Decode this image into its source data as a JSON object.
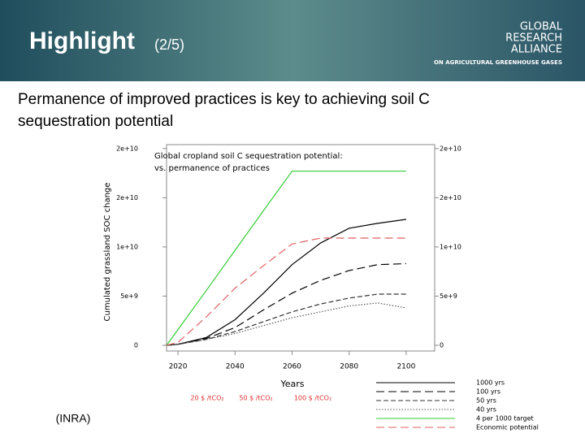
{
  "header": {
    "title": "Highlight",
    "counter": "(2/5)",
    "logo": [
      "GLOBAL",
      "RESEARCH",
      "ALLIANCE"
    ],
    "logo_tagline": "ON AGRICULTURAL GREENHOUSE GASES"
  },
  "heading": [
    "Permanence of improved practices is key to achieving soil C",
    "sequestration potential"
  ],
  "source": "(INRA)",
  "chart_data": {
    "type": "line",
    "title": "Global cropland soil C sequestration potential:",
    "subtitle": "vs. permanence of practices",
    "x_label": "Years",
    "y_label": "Cumulated grassland SOC change",
    "x": [
      2016,
      2020,
      2030,
      2040,
      2050,
      2060,
      2070,
      2080,
      2090,
      2100
    ],
    "series": [
      {
        "name": "1000 yrs",
        "color": "#000000",
        "style": "solid",
        "values": [
          0,
          100000000,
          800000000,
          2600000000,
          5300000000,
          8200000000,
          10400000000,
          11900000000,
          12400000000,
          12800000000
        ]
      },
      {
        "name": "100 yrs",
        "color": "#000000",
        "style": "dashed",
        "values": [
          0,
          100000000,
          700000000,
          1800000000,
          3600000000,
          5300000000,
          6600000000,
          7600000000,
          8200000000,
          8300000000
        ]
      },
      {
        "name": "50 yrs",
        "color": "#333333",
        "style": "dashed-short",
        "values": [
          0,
          100000000,
          600000000,
          1400000000,
          2400000000,
          3400000000,
          4200000000,
          4800000000,
          5200000000,
          5200000000
        ]
      },
      {
        "name": "40 yrs",
        "color": "#555555",
        "style": "dotted",
        "values": [
          0,
          100000000,
          600000000,
          1200000000,
          2000000000,
          2800000000,
          3400000000,
          4000000000,
          4300000000,
          3800000000
        ]
      },
      {
        "name": "4 per 1000 target",
        "color": "#33cc33",
        "style": "solid",
        "values": [
          0,
          1600000000,
          5600000000,
          9650000000,
          13700000000,
          17700000000,
          17700000000,
          17700000000,
          17700000000,
          17700000000
        ]
      },
      {
        "name": "Economic potential",
        "color": "#e06060",
        "style": "dashed",
        "values": [
          0,
          300000000,
          2900000000,
          5800000000,
          8100000000,
          10300000000,
          10900000000,
          10900000000,
          10900000000,
          10900000000
        ]
      }
    ],
    "xlim": [
      2016,
      2110
    ],
    "xticks": [
      2020,
      2040,
      2060,
      2080,
      2100
    ],
    "ylim": [
      -580000000,
      20400000000
    ],
    "yticks": [
      0,
      {
        "value": 5000000000,
        "label": "5e+9"
      },
      {
        "value": 10000000000,
        "label": "1e+10"
      },
      {
        "value": 15000000000,
        "label": "2e+10"
      },
      {
        "value": 20000000000,
        "label": "2e+10"
      }
    ],
    "annotations": [
      "20 $ /tCO₂",
      "50 $ /tCO₂",
      "100 $ /tCO₂"
    ],
    "annotation_color": "#e03030"
  }
}
